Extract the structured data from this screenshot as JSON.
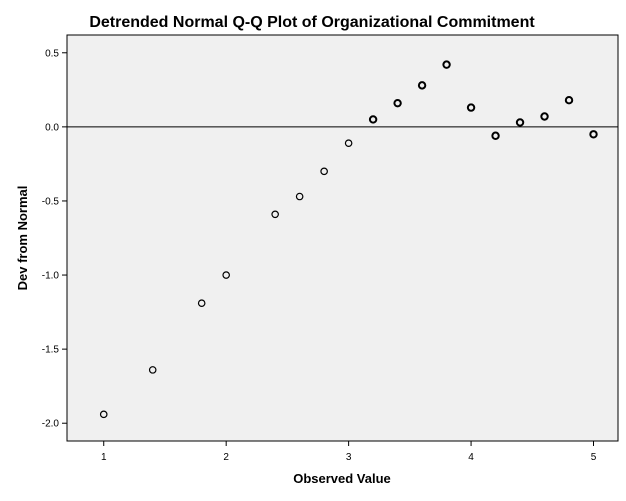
{
  "chart_data": {
    "type": "scatter",
    "title": "Detrended Normal Q-Q Plot of Organizational Commitment",
    "xlabel": "Observed Value",
    "ylabel": "Dev from Normal",
    "xlim": [
      0.7,
      5.2
    ],
    "ylim": [
      -2.12,
      0.62
    ],
    "x_ticks": [
      "1",
      "2",
      "3",
      "4",
      "5"
    ],
    "y_ticks": [
      "0.5",
      "0.0",
      "-0.5",
      "-1.0",
      "-1.5",
      "-2.0"
    ],
    "reference_line_y": 0,
    "grid": false,
    "plot_background": "#f0f0f0",
    "marker_color": "#000000",
    "points": [
      {
        "x": 1.0,
        "y": -1.94
      },
      {
        "x": 1.4,
        "y": -1.64
      },
      {
        "x": 1.8,
        "y": -1.19
      },
      {
        "x": 2.0,
        "y": -1.0
      },
      {
        "x": 2.4,
        "y": -0.59
      },
      {
        "x": 2.6,
        "y": -0.47
      },
      {
        "x": 2.8,
        "y": -0.3
      },
      {
        "x": 3.0,
        "y": -0.11
      },
      {
        "x": 3.2,
        "y": 0.05
      },
      {
        "x": 3.4,
        "y": 0.16
      },
      {
        "x": 3.6,
        "y": 0.28
      },
      {
        "x": 3.8,
        "y": 0.42
      },
      {
        "x": 4.0,
        "y": 0.13
      },
      {
        "x": 4.2,
        "y": -0.06
      },
      {
        "x": 4.4,
        "y": 0.03
      },
      {
        "x": 4.6,
        "y": 0.07
      },
      {
        "x": 4.8,
        "y": 0.18
      },
      {
        "x": 5.0,
        "y": -0.05
      }
    ]
  }
}
